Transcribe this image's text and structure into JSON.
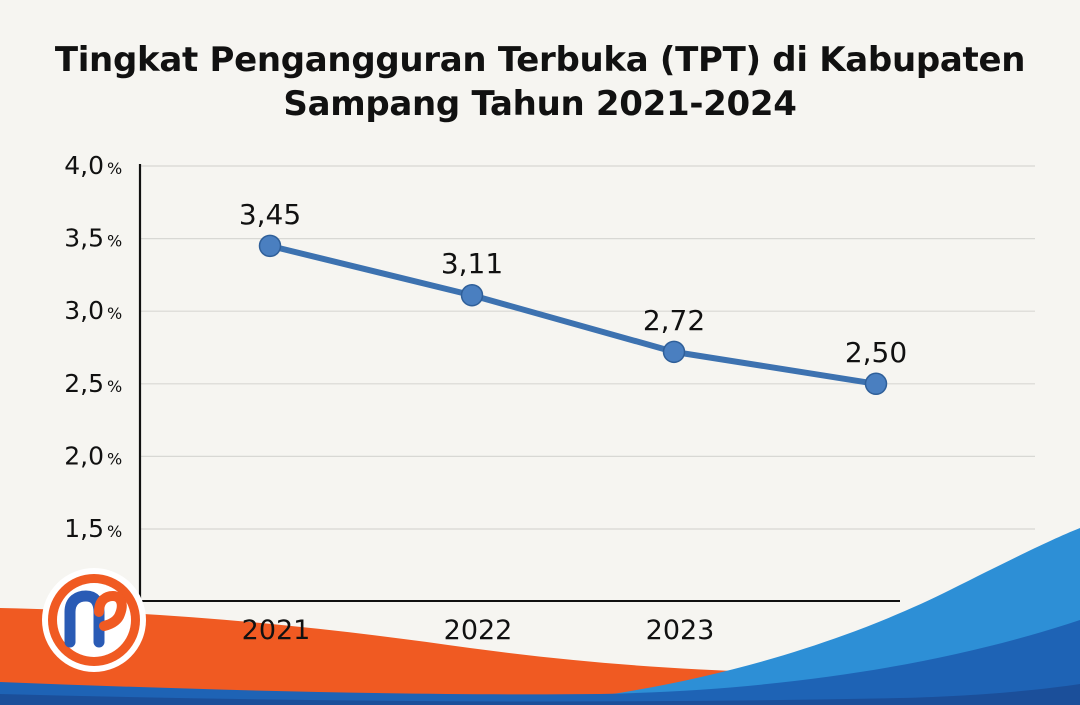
{
  "chart_data": {
    "type": "line",
    "title_line1": "Tingkat Pengangguran Terbuka (TPT) di Kabupaten",
    "title_line2": "Sampang Tahun 2021-2024",
    "categories": [
      "2021",
      "2022",
      "2023",
      ""
    ],
    "x_tick_labels": [
      "2021",
      "2022",
      "2023"
    ],
    "series": [
      {
        "values": [
          3.45,
          3.11,
          2.72,
          2.5
        ]
      }
    ],
    "data_labels": [
      "3,45",
      "3,11",
      "2,72",
      "2,50"
    ],
    "y_ticks": [
      1.5,
      2.0,
      2.5,
      3.0,
      3.5,
      4.0
    ],
    "y_tick_labels": [
      "1,5",
      "2,0",
      "2,5",
      "3,0",
      "3,5",
      "4,0"
    ],
    "y_unit": "%",
    "ylim": [
      1.0,
      4.0
    ],
    "grid": true,
    "legend": "none"
  },
  "colors": {
    "background": "#f6f5f1",
    "line": "#3d72b0",
    "marker": "#4a7fc0",
    "grid": "#d8d8d4",
    "axis": "#111111",
    "wave_orange": "#f05a22",
    "wave_blue": "#1e63b5",
    "wave_light_blue": "#2d8fd6"
  },
  "logo": {
    "name": "m-logo",
    "letter": "m"
  }
}
